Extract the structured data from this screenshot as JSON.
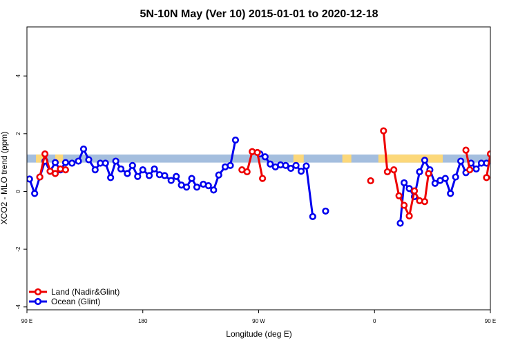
{
  "chart_data": {
    "type": "line",
    "title": "5N-10N May (Ver 10)   2015-01-01 to 2020-12-18",
    "xlabel": "Longitude (deg E)",
    "ylabel": "XCO2 - MLO trend (ppm)",
    "xlim": [
      90,
      450
    ],
    "ylim": [
      -4.1,
      5.7
    ],
    "xticks": [
      {
        "value": 90,
        "label": "90 E"
      },
      {
        "value": 180,
        "label": "180"
      },
      {
        "value": 270,
        "label": "90 W"
      },
      {
        "value": 360,
        "label": "0"
      },
      {
        "value": 450,
        "label": "90 E"
      },
      {
        "value": 540,
        "label": "180"
      }
    ],
    "yticks": [
      {
        "value": -4,
        "label": "-4"
      },
      {
        "value": -2,
        "label": "-2"
      },
      {
        "value": 0,
        "label": "0"
      },
      {
        "value": 2,
        "label": "2"
      },
      {
        "value": 4,
        "label": "4"
      }
    ],
    "grid": false,
    "legend_position": "bottom-left",
    "colors": {
      "land": "#ee0000",
      "ocean": "#0000ee",
      "band_ocean": "#a4bede",
      "band_land": "#fcd87a"
    },
    "surface_band": {
      "y_range": [
        1.0,
        1.28
      ],
      "land_ranges": [
        [
          97,
          103
        ],
        [
          112,
          118
        ],
        [
          297,
          305
        ],
        [
          335,
          342
        ],
        [
          363,
          413
        ],
        [
          450,
          455
        ],
        [
          460,
          465
        ]
      ]
    },
    "series": [
      {
        "name": "Ocean (Glint)",
        "key": "ocean",
        "points": [
          [
            92,
            0.43
          ],
          [
            96,
            -0.07
          ],
          [
            100,
            0.5
          ],
          [
            104,
            1.05
          ],
          [
            108,
            0.7
          ],
          [
            112,
            1.0
          ],
          [
            116,
            0.75
          ],
          [
            120,
            1.0
          ],
          [
            125,
            0.98
          ],
          [
            130,
            1.05
          ],
          [
            134,
            1.47
          ],
          [
            138,
            1.1
          ],
          [
            143,
            0.75
          ],
          [
            147,
            0.98
          ],
          [
            151,
            0.98
          ],
          [
            155,
            0.48
          ],
          [
            159,
            1.05
          ],
          [
            163,
            0.78
          ],
          [
            168,
            0.62
          ],
          [
            172,
            0.9
          ],
          [
            176,
            0.52
          ],
          [
            180,
            0.75
          ],
          [
            185,
            0.55
          ],
          [
            189,
            0.78
          ],
          [
            193,
            0.58
          ],
          [
            197,
            0.55
          ],
          [
            202,
            0.38
          ],
          [
            206,
            0.52
          ],
          [
            210,
            0.22
          ],
          [
            214,
            0.15
          ],
          [
            218,
            0.45
          ],
          [
            222,
            0.15
          ],
          [
            227,
            0.25
          ],
          [
            231,
            0.2
          ],
          [
            235,
            0.05
          ],
          [
            239,
            0.57
          ],
          [
            244,
            0.85
          ],
          [
            248,
            0.9
          ],
          [
            252,
            1.78
          ],
          null,
          [
            271,
            1.3
          ],
          [
            275,
            1.2
          ],
          [
            279,
            0.95
          ],
          [
            283,
            0.85
          ],
          [
            287,
            0.92
          ],
          [
            291,
            0.9
          ],
          [
            295,
            0.8
          ],
          [
            299,
            0.9
          ],
          [
            303,
            0.7
          ],
          [
            307,
            0.88
          ],
          [
            312,
            -0.87
          ],
          null,
          [
            322,
            -0.68
          ],
          null,
          [
            380,
            -1.1
          ],
          [
            383,
            0.3
          ],
          [
            387,
            0.1
          ],
          [
            391,
            -0.18
          ],
          [
            395,
            0.68
          ],
          [
            399,
            1.08
          ],
          [
            403,
            0.75
          ],
          [
            407,
            0.28
          ],
          [
            411,
            0.38
          ],
          [
            415,
            0.45
          ],
          [
            419,
            -0.07
          ],
          [
            423,
            0.5
          ],
          [
            427,
            1.05
          ],
          [
            431,
            0.65
          ],
          [
            435,
            0.98
          ],
          [
            439,
            0.78
          ],
          [
            443,
            0.98
          ],
          [
            447,
            0.98
          ],
          [
            451,
            1.05
          ],
          [
            455,
            1.47
          ],
          [
            459,
            1.1
          ],
          [
            463,
            0.75
          ],
          [
            467,
            0.98
          ],
          [
            471,
            0.98
          ],
          [
            475,
            0.48
          ],
          [
            479,
            1.05
          ],
          [
            483,
            0.78
          ]
        ]
      },
      {
        "name": "Land (Nadir&Glint)",
        "key": "land",
        "points": [
          [
            100,
            0.5
          ],
          [
            104,
            1.3
          ],
          [
            108,
            0.7
          ],
          [
            112,
            0.62
          ],
          [
            116,
            0.78
          ],
          [
            120,
            0.75
          ],
          null,
          [
            257,
            0.75
          ],
          [
            261,
            0.68
          ],
          [
            265,
            1.38
          ],
          [
            269,
            1.35
          ],
          [
            273,
            0.45
          ],
          null,
          [
            357,
            0.37
          ],
          null,
          [
            367,
            2.1
          ],
          [
            370,
            0.68
          ],
          [
            375,
            0.75
          ],
          [
            379,
            -0.15
          ],
          [
            383,
            -0.48
          ],
          [
            387,
            -0.85
          ],
          [
            391,
            0.02
          ],
          [
            395,
            -0.32
          ],
          [
            399,
            -0.35
          ],
          [
            402,
            0.62
          ],
          null,
          [
            431,
            1.43
          ],
          [
            434,
            0.75
          ],
          null,
          [
            447,
            0.48
          ],
          [
            450,
            1.3
          ],
          null,
          [
            460,
            0.62
          ],
          [
            464,
            0.75
          ]
        ]
      }
    ]
  }
}
